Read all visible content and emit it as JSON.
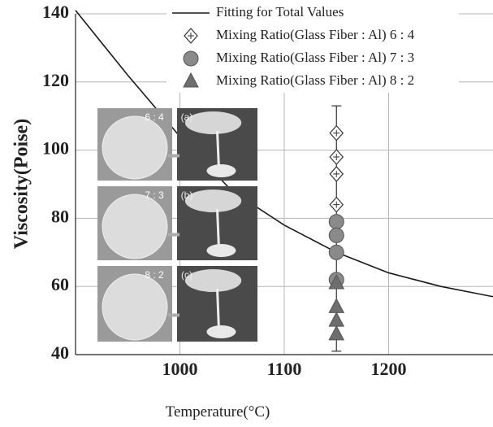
{
  "chart_data": {
    "type": "line",
    "x_label": "Temperature(°C)",
    "y_label": "Viscosity(Poise)",
    "xlim": [
      900,
      1300
    ],
    "xticks": [
      1000,
      1100,
      1200
    ],
    "ylim": [
      40,
      140
    ],
    "yticks": [
      40,
      60,
      80,
      100,
      120,
      140
    ],
    "grid": true,
    "legend": "top",
    "series": [
      {
        "name": "Fitting for Total Values",
        "color": "#1a1a1a",
        "marker": "none",
        "x": [
          900,
          950,
          1000,
          1050,
          1100,
          1150,
          1200,
          1250,
          1300
        ],
        "values": [
          141,
          122,
          104,
          88,
          78,
          70,
          64,
          60,
          57
        ]
      },
      {
        "name": "Mixing Ratio(Glass Fiber : Al) 6 : 4",
        "color": "#ffffff",
        "marker": "diamond",
        "x": [
          1150,
          1150,
          1150,
          1150
        ],
        "values": [
          105,
          98,
          93,
          84
        ]
      },
      {
        "name": "Mixing Ratio(Glass Fiber : Al) 7 : 3",
        "color": "#8a8a8a",
        "marker": "circle",
        "x": [
          1150,
          1150,
          1150,
          1150
        ],
        "values": [
          79,
          75,
          70,
          62
        ]
      },
      {
        "name": "Mixing Ratio(Glass Fiber : Al) 8 : 2",
        "color": "#6e6e6e",
        "marker": "triangle",
        "x": [
          1150,
          1150,
          1150,
          1150
        ],
        "values": [
          61,
          54,
          50,
          46
        ]
      }
    ],
    "error_bar": {
      "x": 1150,
      "low": 41,
      "high": 113
    },
    "inset_labels": [
      [
        "6 : 4",
        "(a)"
      ],
      [
        "7 : 3",
        "(b)"
      ],
      [
        "8 : 2",
        "(c)"
      ]
    ]
  }
}
